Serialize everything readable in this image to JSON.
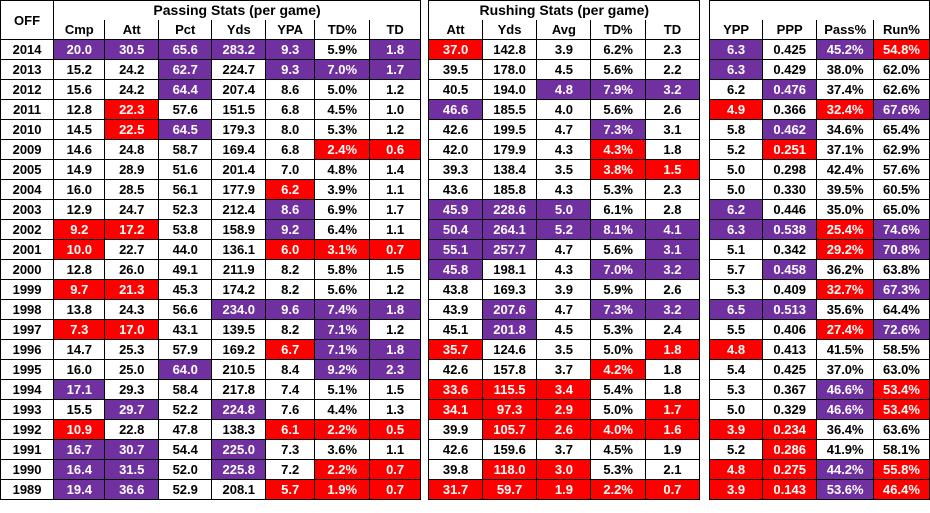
{
  "off_label": "OFF",
  "group_titles": {
    "passing": "Passing Stats (per game)",
    "rushing": "Rushing Stats (per game)"
  },
  "passing_headers": [
    "Cmp",
    "Att",
    "Pct",
    "Yds",
    "YPA",
    "TD%",
    "TD"
  ],
  "rushing_headers": [
    "Att",
    "Yds",
    "Avg",
    "TD%",
    "TD"
  ],
  "summary_headers": [
    "YPP",
    "PPP",
    "Pass%",
    "Run%"
  ],
  "colors": {
    "purple": "#7030a0",
    "red": "#ff0000"
  },
  "rows": [
    {
      "year": "2014",
      "passing": [
        "20.0",
        "30.5",
        "65.6",
        "283.2",
        "9.3",
        "5.9%",
        "1.8"
      ],
      "rushing": [
        "37.0",
        "142.8",
        "3.9",
        "6.2%",
        "2.3"
      ],
      "summary": [
        "6.3",
        "0.425",
        "45.2%",
        "54.8%"
      ],
      "hl": {
        "passing": [
          "p",
          "p",
          "p",
          "p",
          "p",
          "",
          "p"
        ],
        "rushing": [
          "r",
          "",
          "",
          "",
          ""
        ],
        "summary": [
          "p",
          "",
          "p",
          "r"
        ]
      }
    },
    {
      "year": "2013",
      "passing": [
        "15.2",
        "24.2",
        "62.7",
        "224.7",
        "9.3",
        "7.0%",
        "1.7"
      ],
      "rushing": [
        "39.5",
        "178.0",
        "4.5",
        "5.6%",
        "2.2"
      ],
      "summary": [
        "6.3",
        "0.429",
        "38.0%",
        "62.0%"
      ],
      "hl": {
        "passing": [
          "",
          "",
          "p",
          "",
          "p",
          "p",
          "p"
        ],
        "rushing": [
          "",
          "",
          "",
          "",
          ""
        ],
        "summary": [
          "p",
          "",
          "",
          ""
        ]
      }
    },
    {
      "year": "2012",
      "passing": [
        "15.6",
        "24.2",
        "64.4",
        "207.4",
        "8.6",
        "5.0%",
        "1.2"
      ],
      "rushing": [
        "40.5",
        "194.0",
        "4.8",
        "7.9%",
        "3.2"
      ],
      "summary": [
        "6.2",
        "0.476",
        "37.4%",
        "62.6%"
      ],
      "hl": {
        "passing": [
          "",
          "",
          "p",
          "",
          "",
          "",
          ""
        ],
        "rushing": [
          "",
          "",
          "p",
          "p",
          "p"
        ],
        "summary": [
          "",
          "p",
          "",
          ""
        ]
      }
    },
    {
      "year": "2011",
      "passing": [
        "12.8",
        "22.3",
        "57.6",
        "151.5",
        "6.8",
        "4.5%",
        "1.0"
      ],
      "rushing": [
        "46.6",
        "185.5",
        "4.0",
        "5.6%",
        "2.6"
      ],
      "summary": [
        "4.9",
        "0.366",
        "32.4%",
        "67.6%"
      ],
      "hl": {
        "passing": [
          "",
          "r",
          "",
          "",
          "",
          "",
          ""
        ],
        "rushing": [
          "p",
          "",
          "",
          "",
          ""
        ],
        "summary": [
          "r",
          "",
          "r",
          "p"
        ]
      }
    },
    {
      "year": "2010",
      "passing": [
        "14.5",
        "22.5",
        "64.5",
        "179.3",
        "8.0",
        "5.3%",
        "1.2"
      ],
      "rushing": [
        "42.6",
        "199.5",
        "4.7",
        "7.3%",
        "3.1"
      ],
      "summary": [
        "5.8",
        "0.462",
        "34.6%",
        "65.4%"
      ],
      "hl": {
        "passing": [
          "",
          "r",
          "p",
          "",
          "",
          "",
          ""
        ],
        "rushing": [
          "",
          "",
          "",
          "p",
          ""
        ],
        "summary": [
          "",
          "p",
          "",
          ""
        ]
      }
    },
    {
      "year": "2009",
      "passing": [
        "14.6",
        "24.8",
        "58.7",
        "169.4",
        "6.8",
        "2.4%",
        "0.6"
      ],
      "rushing": [
        "42.0",
        "179.9",
        "4.3",
        "4.3%",
        "1.8"
      ],
      "summary": [
        "5.2",
        "0.251",
        "37.1%",
        "62.9%"
      ],
      "hl": {
        "passing": [
          "",
          "",
          "",
          "",
          "",
          "r",
          "r"
        ],
        "rushing": [
          "",
          "",
          "",
          "r",
          ""
        ],
        "summary": [
          "",
          "r",
          "",
          ""
        ]
      }
    },
    {
      "year": "2005",
      "passing": [
        "14.9",
        "28.9",
        "51.6",
        "201.4",
        "7.0",
        "4.8%",
        "1.4"
      ],
      "rushing": [
        "39.3",
        "138.4",
        "3.5",
        "3.8%",
        "1.5"
      ],
      "summary": [
        "5.0",
        "0.298",
        "42.4%",
        "57.6%"
      ],
      "hl": {
        "passing": [
          "",
          "",
          "",
          "",
          "",
          "",
          ""
        ],
        "rushing": [
          "",
          "",
          "",
          "r",
          "r"
        ],
        "summary": [
          "",
          "",
          "",
          ""
        ]
      }
    },
    {
      "year": "2004",
      "passing": [
        "16.0",
        "28.5",
        "56.1",
        "177.9",
        "6.2",
        "3.9%",
        "1.1"
      ],
      "rushing": [
        "43.6",
        "185.8",
        "4.3",
        "5.3%",
        "2.3"
      ],
      "summary": [
        "5.0",
        "0.330",
        "39.5%",
        "60.5%"
      ],
      "hl": {
        "passing": [
          "",
          "",
          "",
          "",
          "r",
          "",
          ""
        ],
        "rushing": [
          "",
          "",
          "",
          "",
          ""
        ],
        "summary": [
          "",
          "",
          "",
          ""
        ]
      }
    },
    {
      "year": "2003",
      "passing": [
        "12.9",
        "24.7",
        "52.3",
        "212.4",
        "8.6",
        "6.9%",
        "1.7"
      ],
      "rushing": [
        "45.9",
        "228.6",
        "5.0",
        "6.1%",
        "2.8"
      ],
      "summary": [
        "6.2",
        "0.446",
        "35.0%",
        "65.0%"
      ],
      "hl": {
        "passing": [
          "",
          "",
          "",
          "",
          "p",
          "",
          ""
        ],
        "rushing": [
          "p",
          "p",
          "p",
          "",
          ""
        ],
        "summary": [
          "p",
          "",
          "",
          ""
        ]
      }
    },
    {
      "year": "2002",
      "passing": [
        "9.2",
        "17.2",
        "53.8",
        "158.9",
        "9.2",
        "6.4%",
        "1.1"
      ],
      "rushing": [
        "50.4",
        "264.1",
        "5.2",
        "8.1%",
        "4.1"
      ],
      "summary": [
        "6.3",
        "0.538",
        "25.4%",
        "74.6%"
      ],
      "hl": {
        "passing": [
          "r",
          "r",
          "",
          "",
          "p",
          "",
          ""
        ],
        "rushing": [
          "p",
          "p",
          "p",
          "p",
          "p"
        ],
        "summary": [
          "p",
          "p",
          "r",
          "p"
        ]
      }
    },
    {
      "year": "2001",
      "passing": [
        "10.0",
        "22.7",
        "44.0",
        "136.1",
        "6.0",
        "3.1%",
        "0.7"
      ],
      "rushing": [
        "55.1",
        "257.7",
        "4.7",
        "5.6%",
        "3.1"
      ],
      "summary": [
        "5.1",
        "0.342",
        "29.2%",
        "70.8%"
      ],
      "hl": {
        "passing": [
          "r",
          "",
          "",
          "",
          "r",
          "r",
          "r"
        ],
        "rushing": [
          "p",
          "p",
          "",
          "",
          "p"
        ],
        "summary": [
          "",
          "",
          "r",
          "p"
        ]
      }
    },
    {
      "year": "2000",
      "passing": [
        "12.8",
        "26.0",
        "49.1",
        "211.9",
        "8.2",
        "5.8%",
        "1.5"
      ],
      "rushing": [
        "45.8",
        "198.1",
        "4.3",
        "7.0%",
        "3.2"
      ],
      "summary": [
        "5.7",
        "0.458",
        "36.2%",
        "63.8%"
      ],
      "hl": {
        "passing": [
          "",
          "",
          "",
          "",
          "",
          "",
          ""
        ],
        "rushing": [
          "p",
          "",
          "",
          "p",
          "p"
        ],
        "summary": [
          "",
          "p",
          "",
          ""
        ]
      }
    },
    {
      "year": "1999",
      "passing": [
        "9.7",
        "21.3",
        "45.3",
        "174.2",
        "8.2",
        "5.6%",
        "1.2"
      ],
      "rushing": [
        "43.8",
        "169.3",
        "3.9",
        "5.9%",
        "2.6"
      ],
      "summary": [
        "5.3",
        "0.409",
        "32.7%",
        "67.3%"
      ],
      "hl": {
        "passing": [
          "r",
          "r",
          "",
          "",
          "",
          "",
          ""
        ],
        "rushing": [
          "",
          "",
          "",
          "",
          ""
        ],
        "summary": [
          "",
          "",
          "r",
          "p"
        ]
      }
    },
    {
      "year": "1998",
      "passing": [
        "13.8",
        "24.3",
        "56.6",
        "234.0",
        "9.6",
        "7.4%",
        "1.8"
      ],
      "rushing": [
        "43.9",
        "207.6",
        "4.7",
        "7.3%",
        "3.2"
      ],
      "summary": [
        "6.5",
        "0.513",
        "35.6%",
        "64.4%"
      ],
      "hl": {
        "passing": [
          "",
          "",
          "",
          "p",
          "p",
          "p",
          "p"
        ],
        "rushing": [
          "",
          "p",
          "",
          "p",
          "p"
        ],
        "summary": [
          "p",
          "p",
          "",
          ""
        ]
      }
    },
    {
      "year": "1997",
      "passing": [
        "7.3",
        "17.0",
        "43.1",
        "139.5",
        "8.2",
        "7.1%",
        "1.2"
      ],
      "rushing": [
        "45.1",
        "201.8",
        "4.5",
        "5.3%",
        "2.4"
      ],
      "summary": [
        "5.5",
        "0.406",
        "27.4%",
        "72.6%"
      ],
      "hl": {
        "passing": [
          "r",
          "r",
          "",
          "",
          "",
          "p",
          ""
        ],
        "rushing": [
          "",
          "p",
          "",
          "",
          ""
        ],
        "summary": [
          "",
          "",
          "r",
          "p"
        ]
      }
    },
    {
      "year": "1996",
      "passing": [
        "14.7",
        "25.3",
        "57.9",
        "169.2",
        "6.7",
        "7.1%",
        "1.8"
      ],
      "rushing": [
        "35.7",
        "124.6",
        "3.5",
        "5.0%",
        "1.8"
      ],
      "summary": [
        "4.8",
        "0.413",
        "41.5%",
        "58.5%"
      ],
      "hl": {
        "passing": [
          "",
          "",
          "",
          "",
          "r",
          "p",
          "p"
        ],
        "rushing": [
          "r",
          "",
          "",
          "",
          "r"
        ],
        "summary": [
          "r",
          "",
          "",
          ""
        ]
      }
    },
    {
      "year": "1995",
      "passing": [
        "16.0",
        "25.0",
        "64.0",
        "210.5",
        "8.4",
        "9.2%",
        "2.3"
      ],
      "rushing": [
        "42.6",
        "157.8",
        "3.7",
        "4.2%",
        "1.8"
      ],
      "summary": [
        "5.4",
        "0.425",
        "37.0%",
        "63.0%"
      ],
      "hl": {
        "passing": [
          "",
          "",
          "p",
          "",
          "",
          "p",
          "p"
        ],
        "rushing": [
          "",
          "",
          "",
          "r",
          ""
        ],
        "summary": [
          "",
          "",
          "",
          ""
        ]
      }
    },
    {
      "year": "1994",
      "passing": [
        "17.1",
        "29.3",
        "58.4",
        "217.8",
        "7.4",
        "5.1%",
        "1.5"
      ],
      "rushing": [
        "33.6",
        "115.5",
        "3.4",
        "5.4%",
        "1.8"
      ],
      "summary": [
        "5.3",
        "0.367",
        "46.6%",
        "53.4%"
      ],
      "hl": {
        "passing": [
          "p",
          "",
          "",
          "",
          "",
          "",
          ""
        ],
        "rushing": [
          "r",
          "r",
          "r",
          "",
          ""
        ],
        "summary": [
          "",
          "",
          "p",
          "r"
        ]
      }
    },
    {
      "year": "1993",
      "passing": [
        "15.5",
        "29.7",
        "52.2",
        "224.8",
        "7.6",
        "4.4%",
        "1.3"
      ],
      "rushing": [
        "34.1",
        "97.3",
        "2.9",
        "5.0%",
        "1.7"
      ],
      "summary": [
        "5.0",
        "0.329",
        "46.6%",
        "53.4%"
      ],
      "hl": {
        "passing": [
          "",
          "p",
          "",
          "p",
          "",
          "",
          ""
        ],
        "rushing": [
          "r",
          "r",
          "r",
          "",
          "r"
        ],
        "summary": [
          "",
          "",
          "p",
          "r"
        ]
      }
    },
    {
      "year": "1992",
      "passing": [
        "10.9",
        "22.8",
        "47.8",
        "138.3",
        "6.1",
        "2.2%",
        "0.5"
      ],
      "rushing": [
        "39.9",
        "105.7",
        "2.6",
        "4.0%",
        "1.6"
      ],
      "summary": [
        "3.9",
        "0.234",
        "36.4%",
        "63.6%"
      ],
      "hl": {
        "passing": [
          "r",
          "",
          "",
          "",
          "r",
          "r",
          "r"
        ],
        "rushing": [
          "",
          "r",
          "r",
          "r",
          "r"
        ],
        "summary": [
          "r",
          "r",
          "",
          ""
        ]
      }
    },
    {
      "year": "1991",
      "passing": [
        "16.7",
        "30.7",
        "54.4",
        "225.0",
        "7.3",
        "3.6%",
        "1.1"
      ],
      "rushing": [
        "42.6",
        "159.6",
        "3.7",
        "4.5%",
        "1.9"
      ],
      "summary": [
        "5.2",
        "0.286",
        "41.9%",
        "58.1%"
      ],
      "hl": {
        "passing": [
          "p",
          "p",
          "",
          "p",
          "",
          "",
          ""
        ],
        "rushing": [
          "",
          "",
          "",
          "",
          ""
        ],
        "summary": [
          "",
          "r",
          "",
          ""
        ]
      }
    },
    {
      "year": "1990",
      "passing": [
        "16.4",
        "31.5",
        "52.0",
        "225.8",
        "7.2",
        "2.2%",
        "0.7"
      ],
      "rushing": [
        "39.8",
        "118.0",
        "3.0",
        "5.3%",
        "2.1"
      ],
      "summary": [
        "4.8",
        "0.275",
        "44.2%",
        "55.8%"
      ],
      "hl": {
        "passing": [
          "p",
          "p",
          "",
          "p",
          "",
          "r",
          "r"
        ],
        "rushing": [
          "",
          "r",
          "r",
          "",
          ""
        ],
        "summary": [
          "r",
          "r",
          "p",
          "r"
        ]
      }
    },
    {
      "year": "1989",
      "passing": [
        "19.4",
        "36.6",
        "52.9",
        "208.1",
        "5.7",
        "1.9%",
        "0.7"
      ],
      "rushing": [
        "31.7",
        "59.7",
        "1.9",
        "2.2%",
        "0.7"
      ],
      "summary": [
        "3.9",
        "0.143",
        "53.6%",
        "46.4%"
      ],
      "hl": {
        "passing": [
          "p",
          "p",
          "",
          "",
          "r",
          "r",
          "r"
        ],
        "rushing": [
          "r",
          "r",
          "r",
          "r",
          "r"
        ],
        "summary": [
          "r",
          "r",
          "p",
          "r"
        ]
      }
    }
  ]
}
